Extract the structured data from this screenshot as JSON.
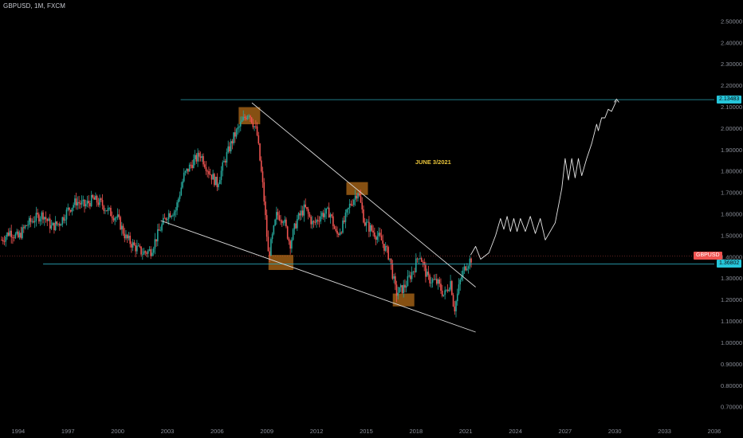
{
  "header": {
    "symbol_text": "GBPUSD, 1M, FXCM"
  },
  "annotation": {
    "text": "JUNE 3/2021"
  },
  "price_labels": {
    "symbol_badge": "GBPUSD",
    "level_badge": "1.36802",
    "top_badge": "2.13483"
  },
  "colors": {
    "up": "#26a69a",
    "down": "#ef5350",
    "cyan_line": "#2aa3b4",
    "red_line": "#ef5350",
    "box": "#b36b18",
    "trend": "#d8d8d8"
  },
  "chart_data": {
    "type": "candlestick",
    "title": "GBPUSD, 1M, FXCM",
    "ylim": [
      0.63,
      2.6
    ],
    "xlim": [
      1992.9,
      2036
    ],
    "y_ticks": [
      "2.50000",
      "2.40000",
      "2.30000",
      "2.20000",
      "2.10000",
      "2.00000",
      "1.90000",
      "1.80000",
      "1.70000",
      "1.60000",
      "1.50000",
      "1.40000",
      "1.30000",
      "1.20000",
      "1.10000",
      "1.00000",
      "0.90000",
      "0.80000",
      "0.70000"
    ],
    "x_ticks": [
      "1994",
      "1997",
      "2000",
      "2003",
      "2006",
      "2009",
      "2012",
      "2015",
      "2018",
      "2021",
      "2024",
      "2027",
      "2030",
      "2033",
      "2036"
    ],
    "price_path": [
      [
        1993.0,
        1.48
      ],
      [
        1993.5,
        1.52
      ],
      [
        1994.0,
        1.49
      ],
      [
        1994.5,
        1.55
      ],
      [
        1995.0,
        1.58
      ],
      [
        1995.5,
        1.6
      ],
      [
        1996.0,
        1.54
      ],
      [
        1996.5,
        1.56
      ],
      [
        1997.0,
        1.62
      ],
      [
        1997.5,
        1.66
      ],
      [
        1998.0,
        1.64
      ],
      [
        1998.5,
        1.67
      ],
      [
        1999.0,
        1.65
      ],
      [
        1999.5,
        1.61
      ],
      [
        2000.0,
        1.58
      ],
      [
        2000.5,
        1.49
      ],
      [
        2001.0,
        1.45
      ],
      [
        2001.5,
        1.42
      ],
      [
        2002.0,
        1.43
      ],
      [
        2002.5,
        1.52
      ],
      [
        2003.0,
        1.6
      ],
      [
        2003.5,
        1.62
      ],
      [
        2004.0,
        1.78
      ],
      [
        2004.5,
        1.84
      ],
      [
        2005.0,
        1.88
      ],
      [
        2005.5,
        1.8
      ],
      [
        2006.0,
        1.74
      ],
      [
        2006.5,
        1.86
      ],
      [
        2007.0,
        1.96
      ],
      [
        2007.5,
        2.03
      ],
      [
        2007.9,
        2.08
      ],
      [
        2008.4,
        1.98
      ],
      [
        2008.8,
        1.7
      ],
      [
        2009.1,
        1.4
      ],
      [
        2009.6,
        1.6
      ],
      [
        2010.0,
        1.58
      ],
      [
        2010.4,
        1.46
      ],
      [
        2010.8,
        1.57
      ],
      [
        2011.3,
        1.63
      ],
      [
        2011.8,
        1.55
      ],
      [
        2012.3,
        1.6
      ],
      [
        2012.8,
        1.61
      ],
      [
        2013.2,
        1.5
      ],
      [
        2013.6,
        1.55
      ],
      [
        2014.0,
        1.64
      ],
      [
        2014.5,
        1.71
      ],
      [
        2014.9,
        1.56
      ],
      [
        2015.4,
        1.52
      ],
      [
        2015.9,
        1.48
      ],
      [
        2016.4,
        1.4
      ],
      [
        2016.8,
        1.23
      ],
      [
        2017.3,
        1.26
      ],
      [
        2017.9,
        1.35
      ],
      [
        2018.2,
        1.42
      ],
      [
        2018.7,
        1.3
      ],
      [
        2019.3,
        1.28
      ],
      [
        2019.7,
        1.22
      ],
      [
        2020.1,
        1.29
      ],
      [
        2020.3,
        1.15
      ],
      [
        2020.7,
        1.3
      ],
      [
        2021.0,
        1.36
      ],
      [
        2021.4,
        1.4
      ]
    ],
    "projection": [
      [
        2021.3,
        1.41
      ],
      [
        2021.6,
        1.45
      ],
      [
        2021.9,
        1.39
      ],
      [
        2022.4,
        1.42
      ],
      [
        2022.8,
        1.5
      ],
      [
        2023.1,
        1.58
      ],
      [
        2023.3,
        1.53
      ],
      [
        2023.5,
        1.59
      ],
      [
        2023.7,
        1.52
      ],
      [
        2023.9,
        1.58
      ],
      [
        2024.1,
        1.52
      ],
      [
        2024.3,
        1.58
      ],
      [
        2024.6,
        1.52
      ],
      [
        2024.9,
        1.59
      ],
      [
        2025.2,
        1.51
      ],
      [
        2025.5,
        1.58
      ],
      [
        2025.8,
        1.48
      ],
      [
        2026.4,
        1.56
      ],
      [
        2026.8,
        1.72
      ],
      [
        2027.0,
        1.86
      ],
      [
        2027.2,
        1.76
      ],
      [
        2027.4,
        1.86
      ],
      [
        2027.6,
        1.77
      ],
      [
        2027.8,
        1.86
      ],
      [
        2028.0,
        1.78
      ],
      [
        2028.3,
        1.86
      ],
      [
        2028.6,
        1.93
      ],
      [
        2028.9,
        2.02
      ],
      [
        2029.0,
        1.99
      ],
      [
        2029.2,
        2.05
      ],
      [
        2029.4,
        2.05
      ],
      [
        2029.6,
        2.09
      ],
      [
        2029.8,
        2.08
      ],
      [
        2030.1,
        2.13
      ]
    ],
    "horizontal_levels": [
      2.13483,
      1.36802,
      1.405
    ],
    "trendlines": [
      [
        [
          2008.1,
          2.12
        ],
        [
          2021.6,
          1.26
        ]
      ],
      [
        [
          2002.6,
          1.57
        ],
        [
          2021.6,
          1.05
        ]
      ]
    ],
    "highlight_boxes": [
      [
        [
          2007.3,
          2.02
        ],
        [
          2008.6,
          2.1
        ]
      ],
      [
        [
          2009.1,
          1.34
        ],
        [
          2010.6,
          1.41
        ]
      ],
      [
        [
          2013.8,
          1.69
        ],
        [
          2015.1,
          1.75
        ]
      ],
      [
        [
          2016.6,
          1.17
        ],
        [
          2017.9,
          1.23
        ]
      ]
    ],
    "annotation_at": [
      2019.3,
      1.84
    ]
  }
}
